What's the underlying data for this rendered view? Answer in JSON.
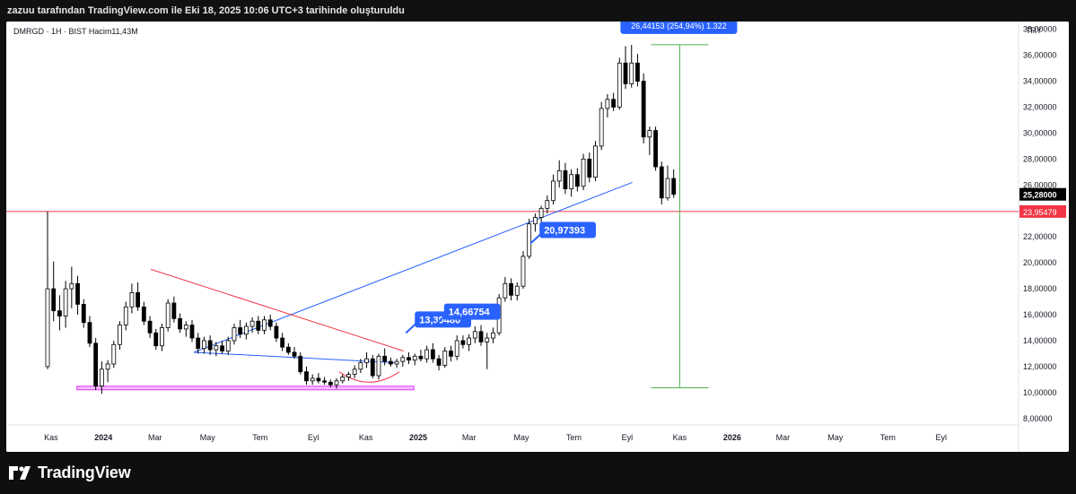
{
  "header": {
    "caption": "zazuu tarafından TradingView.com ile Eki 18, 2025 10:06 UTC+3 tarihinde oluşturuldu"
  },
  "chart_header": {
    "symbol_line": "DMRGD · 1H · BIST  Hacim11,43M",
    "currency": "TRY"
  },
  "brand": {
    "name": "TradingView"
  },
  "colors": {
    "up": "#ffffff",
    "down": "#000000",
    "wick": "#000000",
    "horizontal_line": "#f23645",
    "trendline": "#2962ff",
    "resistance_line": "#f23645",
    "support_zone": "#e040fb",
    "measure": "#4caf50",
    "label_bg": "#2962ff"
  },
  "chart_data": {
    "type": "candlestick",
    "y_axis": {
      "min": 7.5,
      "max": 38.6,
      "position": "right",
      "ticks": [
        {
          "value": 8,
          "label": "8,00000"
        },
        {
          "value": 10,
          "label": "10,00000"
        },
        {
          "value": 12,
          "label": "12,00000"
        },
        {
          "value": 14,
          "label": "14,00000"
        },
        {
          "value": 16,
          "label": "16,00000"
        },
        {
          "value": 18,
          "label": "18,00000"
        },
        {
          "value": 20,
          "label": "20,00000"
        },
        {
          "value": 22,
          "label": "22,00000"
        },
        {
          "value": 24,
          "label": "24,00000"
        },
        {
          "value": 26,
          "label": "26,00000"
        },
        {
          "value": 28,
          "label": "28,00000"
        },
        {
          "value": 30,
          "label": "30,00000"
        },
        {
          "value": 32,
          "label": "32,00000"
        },
        {
          "value": 34,
          "label": "34,00000"
        },
        {
          "value": 36,
          "label": "36,00000"
        },
        {
          "value": 38,
          "label": "38,00000"
        }
      ]
    },
    "x_axis": {
      "min": "2023-09-10",
      "max": "2026-11-30",
      "ticks": [
        {
          "date": "2023-11-01",
          "label": "Kas",
          "bold": false
        },
        {
          "date": "2024-01-01",
          "label": "2024",
          "bold": true
        },
        {
          "date": "2024-03-01",
          "label": "Mar",
          "bold": false
        },
        {
          "date": "2024-05-01",
          "label": "May",
          "bold": false
        },
        {
          "date": "2024-07-01",
          "label": "Tem",
          "bold": false
        },
        {
          "date": "2024-09-01",
          "label": "Eyl",
          "bold": false
        },
        {
          "date": "2024-11-01",
          "label": "Kas",
          "bold": false
        },
        {
          "date": "2025-01-01",
          "label": "2025",
          "bold": true
        },
        {
          "date": "2025-03-01",
          "label": "Mar",
          "bold": false
        },
        {
          "date": "2025-05-01",
          "label": "May",
          "bold": false
        },
        {
          "date": "2025-07-01",
          "label": "Tem",
          "bold": false
        },
        {
          "date": "2025-09-01",
          "label": "Eyl",
          "bold": false
        },
        {
          "date": "2025-11-01",
          "label": "Kas",
          "bold": false
        },
        {
          "date": "2026-01-01",
          "label": "2026",
          "bold": true
        },
        {
          "date": "2026-03-01",
          "label": "Mar",
          "bold": false
        },
        {
          "date": "2026-05-01",
          "label": "May",
          "bold": false
        },
        {
          "date": "2026-07-01",
          "label": "Tem",
          "bold": false
        },
        {
          "date": "2026-09-01",
          "label": "Eyl",
          "bold": false
        }
      ]
    },
    "grid": false,
    "last_price": {
      "value": 25.28,
      "label": "25,28000"
    },
    "horizontal_line": {
      "value": 23.95479,
      "label": "23,95479"
    },
    "measurement": {
      "label": "26,44153 (254,94%) 1.322",
      "date": "2025-11-01",
      "from_value": 10.37,
      "to_value": 36.81
    },
    "annotations": [
      {
        "text": "13,39480",
        "date": "2024-12-28",
        "value": 15.7
      },
      {
        "text": "14,66754",
        "date": "2025-01-31",
        "value": 16.3
      },
      {
        "text": "20,97393",
        "date": "2025-05-22",
        "value": 22.6
      }
    ],
    "trendlines": [
      {
        "name": "rising-trendline",
        "from": {
          "date": "2024-04-15",
          "value": 13.1
        },
        "to": {
          "date": "2025-09-07",
          "value": 26.2
        }
      },
      {
        "name": "falling-resistance-line",
        "from": {
          "date": "2024-02-25",
          "value": 19.5
        },
        "to": {
          "date": "2024-12-15",
          "value": 13.2
        }
      },
      {
        "name": "lower-line",
        "from": {
          "date": "2024-04-15",
          "value": 13.1
        },
        "to": {
          "date": "2024-12-05",
          "value": 12.3
        }
      },
      {
        "name": "support-zone",
        "from": {
          "date": "2023-12-01",
          "value": 10.35
        },
        "to": {
          "date": "2024-12-27",
          "value": 10.35
        }
      }
    ],
    "candles": [
      {
        "d": "2023-10-28",
        "o": 12.0,
        "h": 23.95,
        "l": 11.8,
        "c": 18.0
      },
      {
        "d": "2023-11-04",
        "o": 18.0,
        "h": 20.1,
        "l": 15.5,
        "c": 16.3
      },
      {
        "d": "2023-11-11",
        "o": 16.3,
        "h": 17.5,
        "l": 14.8,
        "c": 15.9
      },
      {
        "d": "2023-11-18",
        "o": 15.9,
        "h": 18.6,
        "l": 15.0,
        "c": 18.0
      },
      {
        "d": "2023-11-25",
        "o": 18.0,
        "h": 19.7,
        "l": 16.5,
        "c": 18.4
      },
      {
        "d": "2023-12-02",
        "o": 18.4,
        "h": 19.0,
        "l": 16.0,
        "c": 16.8
      },
      {
        "d": "2023-12-09",
        "o": 16.8,
        "h": 17.2,
        "l": 15.0,
        "c": 15.4
      },
      {
        "d": "2023-12-16",
        "o": 15.4,
        "h": 15.9,
        "l": 13.5,
        "c": 13.8
      },
      {
        "d": "2023-12-23",
        "o": 13.8,
        "h": 14.2,
        "l": 10.2,
        "c": 10.5
      },
      {
        "d": "2023-12-30",
        "o": 10.5,
        "h": 12.4,
        "l": 9.9,
        "c": 11.8
      },
      {
        "d": "2024-01-06",
        "o": 11.8,
        "h": 12.5,
        "l": 10.8,
        "c": 12.2
      },
      {
        "d": "2024-01-13",
        "o": 12.2,
        "h": 14.0,
        "l": 11.9,
        "c": 13.7
      },
      {
        "d": "2024-01-20",
        "o": 13.7,
        "h": 15.5,
        "l": 13.3,
        "c": 15.2
      },
      {
        "d": "2024-01-27",
        "o": 15.2,
        "h": 17.0,
        "l": 14.8,
        "c": 16.6
      },
      {
        "d": "2024-02-03",
        "o": 16.6,
        "h": 18.4,
        "l": 16.1,
        "c": 17.7
      },
      {
        "d": "2024-02-10",
        "o": 17.7,
        "h": 18.5,
        "l": 16.3,
        "c": 16.6
      },
      {
        "d": "2024-02-17",
        "o": 16.6,
        "h": 17.0,
        "l": 15.2,
        "c": 15.5
      },
      {
        "d": "2024-02-24",
        "o": 15.5,
        "h": 15.9,
        "l": 14.2,
        "c": 14.6
      },
      {
        "d": "2024-03-02",
        "o": 14.6,
        "h": 14.9,
        "l": 13.3,
        "c": 13.6
      },
      {
        "d": "2024-03-09",
        "o": 13.6,
        "h": 15.3,
        "l": 13.2,
        "c": 15.0
      },
      {
        "d": "2024-03-16",
        "o": 15.0,
        "h": 17.2,
        "l": 14.7,
        "c": 16.9
      },
      {
        "d": "2024-03-23",
        "o": 16.9,
        "h": 17.4,
        "l": 15.4,
        "c": 15.7
      },
      {
        "d": "2024-03-30",
        "o": 15.7,
        "h": 16.1,
        "l": 14.6,
        "c": 14.9
      },
      {
        "d": "2024-04-06",
        "o": 14.9,
        "h": 15.5,
        "l": 14.3,
        "c": 15.2
      },
      {
        "d": "2024-04-13",
        "o": 15.2,
        "h": 15.6,
        "l": 13.9,
        "c": 14.2
      },
      {
        "d": "2024-04-20",
        "o": 14.2,
        "h": 14.6,
        "l": 13.0,
        "c": 13.4
      },
      {
        "d": "2024-04-27",
        "o": 13.4,
        "h": 14.3,
        "l": 13.0,
        "c": 14.0
      },
      {
        "d": "2024-05-04",
        "o": 14.0,
        "h": 14.4,
        "l": 12.9,
        "c": 13.3
      },
      {
        "d": "2024-05-11",
        "o": 13.3,
        "h": 13.9,
        "l": 12.8,
        "c": 13.6
      },
      {
        "d": "2024-05-18",
        "o": 13.6,
        "h": 14.0,
        "l": 13.0,
        "c": 13.2
      },
      {
        "d": "2024-05-25",
        "o": 13.2,
        "h": 14.3,
        "l": 12.9,
        "c": 14.0
      },
      {
        "d": "2024-06-01",
        "o": 14.0,
        "h": 15.3,
        "l": 13.7,
        "c": 15.0
      },
      {
        "d": "2024-06-08",
        "o": 15.0,
        "h": 15.6,
        "l": 14.2,
        "c": 14.5
      },
      {
        "d": "2024-06-15",
        "o": 14.5,
        "h": 15.4,
        "l": 14.1,
        "c": 15.1
      },
      {
        "d": "2024-06-22",
        "o": 15.1,
        "h": 15.8,
        "l": 14.6,
        "c": 15.5
      },
      {
        "d": "2024-06-29",
        "o": 15.5,
        "h": 15.9,
        "l": 14.5,
        "c": 14.8
      },
      {
        "d": "2024-07-06",
        "o": 14.8,
        "h": 15.9,
        "l": 14.5,
        "c": 15.6
      },
      {
        "d": "2024-07-13",
        "o": 15.6,
        "h": 16.0,
        "l": 14.8,
        "c": 15.1
      },
      {
        "d": "2024-07-20",
        "o": 15.1,
        "h": 15.4,
        "l": 13.9,
        "c": 14.2
      },
      {
        "d": "2024-07-27",
        "o": 14.2,
        "h": 14.6,
        "l": 13.2,
        "c": 13.5
      },
      {
        "d": "2024-08-03",
        "o": 13.5,
        "h": 13.8,
        "l": 12.9,
        "c": 13.1
      },
      {
        "d": "2024-08-10",
        "o": 13.1,
        "h": 13.5,
        "l": 12.6,
        "c": 12.8
      },
      {
        "d": "2024-08-17",
        "o": 12.8,
        "h": 13.1,
        "l": 11.4,
        "c": 11.6
      },
      {
        "d": "2024-08-24",
        "o": 11.6,
        "h": 12.0,
        "l": 10.6,
        "c": 10.9
      },
      {
        "d": "2024-08-31",
        "o": 10.9,
        "h": 11.4,
        "l": 10.6,
        "c": 11.1
      },
      {
        "d": "2024-09-07",
        "o": 11.1,
        "h": 11.5,
        "l": 10.7,
        "c": 10.9
      },
      {
        "d": "2024-09-14",
        "o": 10.9,
        "h": 11.2,
        "l": 10.6,
        "c": 10.8
      },
      {
        "d": "2024-09-21",
        "o": 10.8,
        "h": 11.0,
        "l": 10.4,
        "c": 10.6
      },
      {
        "d": "2024-09-28",
        "o": 10.6,
        "h": 11.1,
        "l": 10.3,
        "c": 10.9
      },
      {
        "d": "2024-10-05",
        "o": 10.9,
        "h": 11.4,
        "l": 10.7,
        "c": 11.2
      },
      {
        "d": "2024-10-12",
        "o": 11.2,
        "h": 11.6,
        "l": 10.9,
        "c": 11.4
      },
      {
        "d": "2024-10-19",
        "o": 11.4,
        "h": 12.1,
        "l": 11.1,
        "c": 11.8
      },
      {
        "d": "2024-10-26",
        "o": 11.8,
        "h": 12.6,
        "l": 11.5,
        "c": 12.3
      },
      {
        "d": "2024-11-02",
        "o": 12.3,
        "h": 13.1,
        "l": 11.9,
        "c": 12.6
      },
      {
        "d": "2024-11-09",
        "o": 12.6,
        "h": 12.9,
        "l": 11.1,
        "c": 11.3
      },
      {
        "d": "2024-11-16",
        "o": 11.3,
        "h": 13.0,
        "l": 11.0,
        "c": 12.8
      },
      {
        "d": "2024-11-23",
        "o": 12.8,
        "h": 13.4,
        "l": 12.1,
        "c": 12.4
      },
      {
        "d": "2024-11-30",
        "o": 12.4,
        "h": 12.7,
        "l": 12.0,
        "c": 12.2
      },
      {
        "d": "2024-12-07",
        "o": 12.2,
        "h": 12.6,
        "l": 11.9,
        "c": 12.4
      },
      {
        "d": "2024-12-14",
        "o": 12.4,
        "h": 12.9,
        "l": 12.0,
        "c": 12.7
      },
      {
        "d": "2024-12-21",
        "o": 12.7,
        "h": 13.1,
        "l": 12.2,
        "c": 12.5
      },
      {
        "d": "2024-12-28",
        "o": 12.5,
        "h": 13.0,
        "l": 12.1,
        "c": 12.8
      },
      {
        "d": "2025-01-04",
        "o": 12.8,
        "h": 13.3,
        "l": 12.4,
        "c": 12.6
      },
      {
        "d": "2025-01-11",
        "o": 12.6,
        "h": 13.6,
        "l": 12.3,
        "c": 13.3
      },
      {
        "d": "2025-01-18",
        "o": 13.3,
        "h": 13.8,
        "l": 12.3,
        "c": 12.6
      },
      {
        "d": "2025-01-25",
        "o": 12.6,
        "h": 12.9,
        "l": 11.7,
        "c": 12.1
      },
      {
        "d": "2025-02-01",
        "o": 12.1,
        "h": 13.5,
        "l": 11.9,
        "c": 13.2
      },
      {
        "d": "2025-02-08",
        "o": 13.2,
        "h": 13.6,
        "l": 12.4,
        "c": 12.8
      },
      {
        "d": "2025-02-15",
        "o": 12.8,
        "h": 14.4,
        "l": 12.5,
        "c": 14.0
      },
      {
        "d": "2025-02-22",
        "o": 14.0,
        "h": 14.4,
        "l": 13.4,
        "c": 13.7
      },
      {
        "d": "2025-03-01",
        "o": 13.7,
        "h": 14.5,
        "l": 13.2,
        "c": 14.2
      },
      {
        "d": "2025-03-08",
        "o": 14.2,
        "h": 15.1,
        "l": 13.8,
        "c": 14.7
      },
      {
        "d": "2025-03-15",
        "o": 14.7,
        "h": 15.2,
        "l": 13.6,
        "c": 13.9
      },
      {
        "d": "2025-03-22",
        "o": 13.9,
        "h": 14.6,
        "l": 11.8,
        "c": 14.2
      },
      {
        "d": "2025-03-29",
        "o": 14.2,
        "h": 15.0,
        "l": 13.8,
        "c": 14.6
      },
      {
        "d": "2025-04-05",
        "o": 14.6,
        "h": 17.6,
        "l": 14.4,
        "c": 17.3
      },
      {
        "d": "2025-04-12",
        "o": 17.3,
        "h": 18.9,
        "l": 17.0,
        "c": 18.4
      },
      {
        "d": "2025-04-19",
        "o": 18.4,
        "h": 18.8,
        "l": 17.1,
        "c": 17.5
      },
      {
        "d": "2025-04-26",
        "o": 17.5,
        "h": 18.5,
        "l": 17.1,
        "c": 18.2
      },
      {
        "d": "2025-05-03",
        "o": 18.2,
        "h": 20.9,
        "l": 18.0,
        "c": 20.5
      },
      {
        "d": "2025-05-10",
        "o": 20.5,
        "h": 23.4,
        "l": 20.3,
        "c": 23.0
      },
      {
        "d": "2025-05-17",
        "o": 23.0,
        "h": 23.8,
        "l": 22.4,
        "c": 23.5
      },
      {
        "d": "2025-05-24",
        "o": 23.5,
        "h": 24.4,
        "l": 22.9,
        "c": 24.2
      },
      {
        "d": "2025-05-31",
        "o": 24.2,
        "h": 25.2,
        "l": 23.8,
        "c": 24.8
      },
      {
        "d": "2025-06-07",
        "o": 24.8,
        "h": 26.8,
        "l": 24.5,
        "c": 26.3
      },
      {
        "d": "2025-06-14",
        "o": 26.3,
        "h": 27.9,
        "l": 25.8,
        "c": 27.1
      },
      {
        "d": "2025-06-21",
        "o": 27.1,
        "h": 27.7,
        "l": 25.3,
        "c": 25.7
      },
      {
        "d": "2025-06-28",
        "o": 25.7,
        "h": 27.2,
        "l": 25.1,
        "c": 26.8
      },
      {
        "d": "2025-07-05",
        "o": 26.8,
        "h": 27.3,
        "l": 25.5,
        "c": 25.9
      },
      {
        "d": "2025-07-12",
        "o": 25.9,
        "h": 28.4,
        "l": 25.6,
        "c": 28.0
      },
      {
        "d": "2025-07-19",
        "o": 28.0,
        "h": 28.5,
        "l": 26.2,
        "c": 26.6
      },
      {
        "d": "2025-07-26",
        "o": 26.6,
        "h": 29.4,
        "l": 26.3,
        "c": 29.0
      },
      {
        "d": "2025-08-02",
        "o": 29.0,
        "h": 32.4,
        "l": 28.7,
        "c": 31.9
      },
      {
        "d": "2025-08-09",
        "o": 31.9,
        "h": 33.0,
        "l": 31.2,
        "c": 32.6
      },
      {
        "d": "2025-08-16",
        "o": 32.6,
        "h": 33.1,
        "l": 31.7,
        "c": 32.0
      },
      {
        "d": "2025-08-23",
        "o": 32.0,
        "h": 35.8,
        "l": 31.8,
        "c": 35.4
      },
      {
        "d": "2025-08-30",
        "o": 35.4,
        "h": 36.7,
        "l": 33.4,
        "c": 33.8
      },
      {
        "d": "2025-09-06",
        "o": 33.8,
        "h": 36.8,
        "l": 33.5,
        "c": 35.4
      },
      {
        "d": "2025-09-13",
        "o": 35.4,
        "h": 36.1,
        "l": 33.6,
        "c": 34.0
      },
      {
        "d": "2025-09-20",
        "o": 34.0,
        "h": 34.6,
        "l": 29.2,
        "c": 29.7
      },
      {
        "d": "2025-09-27",
        "o": 29.7,
        "h": 30.5,
        "l": 28.3,
        "c": 30.2
      },
      {
        "d": "2025-10-04",
        "o": 30.2,
        "h": 30.5,
        "l": 27.1,
        "c": 27.4
      },
      {
        "d": "2025-10-11",
        "o": 27.4,
        "h": 27.8,
        "l": 24.5,
        "c": 25.0
      },
      {
        "d": "2025-10-18",
        "o": 25.0,
        "h": 27.5,
        "l": 24.8,
        "c": 26.5
      },
      {
        "d": "2025-10-25",
        "o": 26.5,
        "h": 27.2,
        "l": 25.0,
        "c": 25.28
      }
    ]
  }
}
